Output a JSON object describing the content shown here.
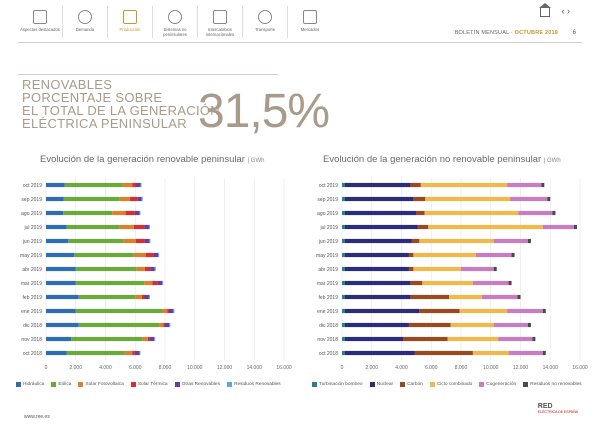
{
  "nav": [
    {
      "label": "Aspectos destacados"
    },
    {
      "label": "Demanda"
    },
    {
      "label": "Producción",
      "active": true
    },
    {
      "label": "Sistemas no peninsulares"
    },
    {
      "label": "Intercambios internacionales"
    },
    {
      "label": "Transporte"
    },
    {
      "label": "Mercados"
    }
  ],
  "header": {
    "bulletin": "BOLETÍN MENSUAL ·",
    "month": "OCTUBRE 2019",
    "page": "6"
  },
  "hero": {
    "lines": [
      "RENOVABLES",
      "PORCENTAJE SOBRE",
      "EL TOTAL DE LA GENERACIÓN",
      "ELÉCTRICA PENINSULAR"
    ],
    "value": "31,5%"
  },
  "footer": {
    "url": "www.ree.es",
    "logo": "RED",
    "logo_sub": "ELÉCTRICA DE ESPAÑA"
  },
  "chart_data": [
    {
      "type": "bar",
      "orientation": "horizontal",
      "stacked": true,
      "title": "Evolución de la generación renovable peninsular",
      "unit": "GWh",
      "categories": [
        "oct 2019",
        "sep 2019",
        "ago 2019",
        "jul 2019",
        "jun 2019",
        "may 2019",
        "abr 2019",
        "mar 2019",
        "feb 2019",
        "ene 2019",
        "dic 2018",
        "nov 2018",
        "oct 2018"
      ],
      "xticks": [
        "0",
        "2.000",
        "4.000",
        "6.000",
        "8.000",
        "10.000",
        "12.000",
        "14.000",
        "16.000"
      ],
      "xlim": [
        0,
        16000
      ],
      "legend_position": "bottom",
      "series": [
        {
          "name": "Hidráulica",
          "color": "#2e6db4",
          "values": [
            1250,
            1200,
            1150,
            1400,
            1500,
            1900,
            2000,
            2000,
            2200,
            2000,
            2200,
            1700,
            1400
          ]
        },
        {
          "name": "Eólica",
          "color": "#6aaa3a",
          "values": [
            3900,
            3750,
            3300,
            3550,
            3700,
            4000,
            4100,
            4600,
            3800,
            5800,
            5400,
            4800,
            3900
          ]
        },
        {
          "name": "Solar Fotovoltaica",
          "color": "#d9822b",
          "values": [
            650,
            700,
            900,
            950,
            850,
            800,
            550,
            550,
            450,
            350,
            300,
            350,
            500
          ]
        },
        {
          "name": "Solar Térmica",
          "color": "#d62f2f",
          "values": [
            250,
            480,
            620,
            700,
            600,
            520,
            350,
            330,
            170,
            90,
            60,
            100,
            170
          ]
        },
        {
          "name": "Otras Renovables",
          "color": "#6b3c9c",
          "values": [
            300,
            300,
            310,
            320,
            300,
            320,
            310,
            330,
            300,
            320,
            330,
            320,
            310
          ]
        },
        {
          "name": "Residuos Renovables",
          "color": "#5aa9d6",
          "values": [
            70,
            70,
            70,
            70,
            70,
            70,
            70,
            70,
            70,
            70,
            70,
            70,
            70
          ]
        }
      ]
    },
    {
      "type": "bar",
      "orientation": "horizontal",
      "stacked": true,
      "title": "Evolución de la generación no renovable peninsular",
      "unit": "GWh",
      "categories": [
        "oct 2019",
        "sep 2019",
        "ago 2019",
        "jul 2019",
        "jun 2019",
        "may 2019",
        "abr 2019",
        "mar 2019",
        "feb 2019",
        "ene 2019",
        "dic 2018",
        "nov 2018",
        "oct 2018"
      ],
      "xticks": [
        "0",
        "2.000",
        "4.000",
        "6.000",
        "8.000",
        "10.000",
        "12.000",
        "14.000",
        "16.000"
      ],
      "xlim": [
        0,
        16000
      ],
      "legend_position": "bottom",
      "series": [
        {
          "name": "Turbinación bombeo",
          "color": "#2a7f8f",
          "values": [
            200,
            200,
            200,
            200,
            200,
            200,
            200,
            200,
            200,
            200,
            200,
            200,
            200
          ]
        },
        {
          "name": "Nuclear",
          "color": "#2b2d7c",
          "values": [
            4400,
            4600,
            4800,
            4900,
            4500,
            4300,
            4300,
            4400,
            4400,
            5000,
            4300,
            3900,
            4700
          ]
        },
        {
          "name": "Carbón",
          "color": "#9a4a1e",
          "values": [
            700,
            800,
            550,
            700,
            500,
            300,
            300,
            800,
            2600,
            2700,
            2800,
            3000,
            3900
          ]
        },
        {
          "name": "Ciclo combinado",
          "color": "#f2b84b",
          "values": [
            5800,
            5700,
            6300,
            7700,
            5000,
            4200,
            3200,
            3400,
            2200,
            3200,
            2900,
            3400,
            2400
          ]
        },
        {
          "name": "Cogeneración",
          "color": "#c77dc0",
          "values": [
            2300,
            2500,
            2300,
            2100,
            2300,
            2400,
            2200,
            2400,
            2400,
            2400,
            2300,
            2300,
            2300
          ]
        },
        {
          "name": "Residuos no renovables",
          "color": "#4a4a4a",
          "values": [
            200,
            200,
            200,
            200,
            200,
            200,
            200,
            200,
            200,
            200,
            200,
            200,
            200
          ]
        }
      ]
    }
  ]
}
